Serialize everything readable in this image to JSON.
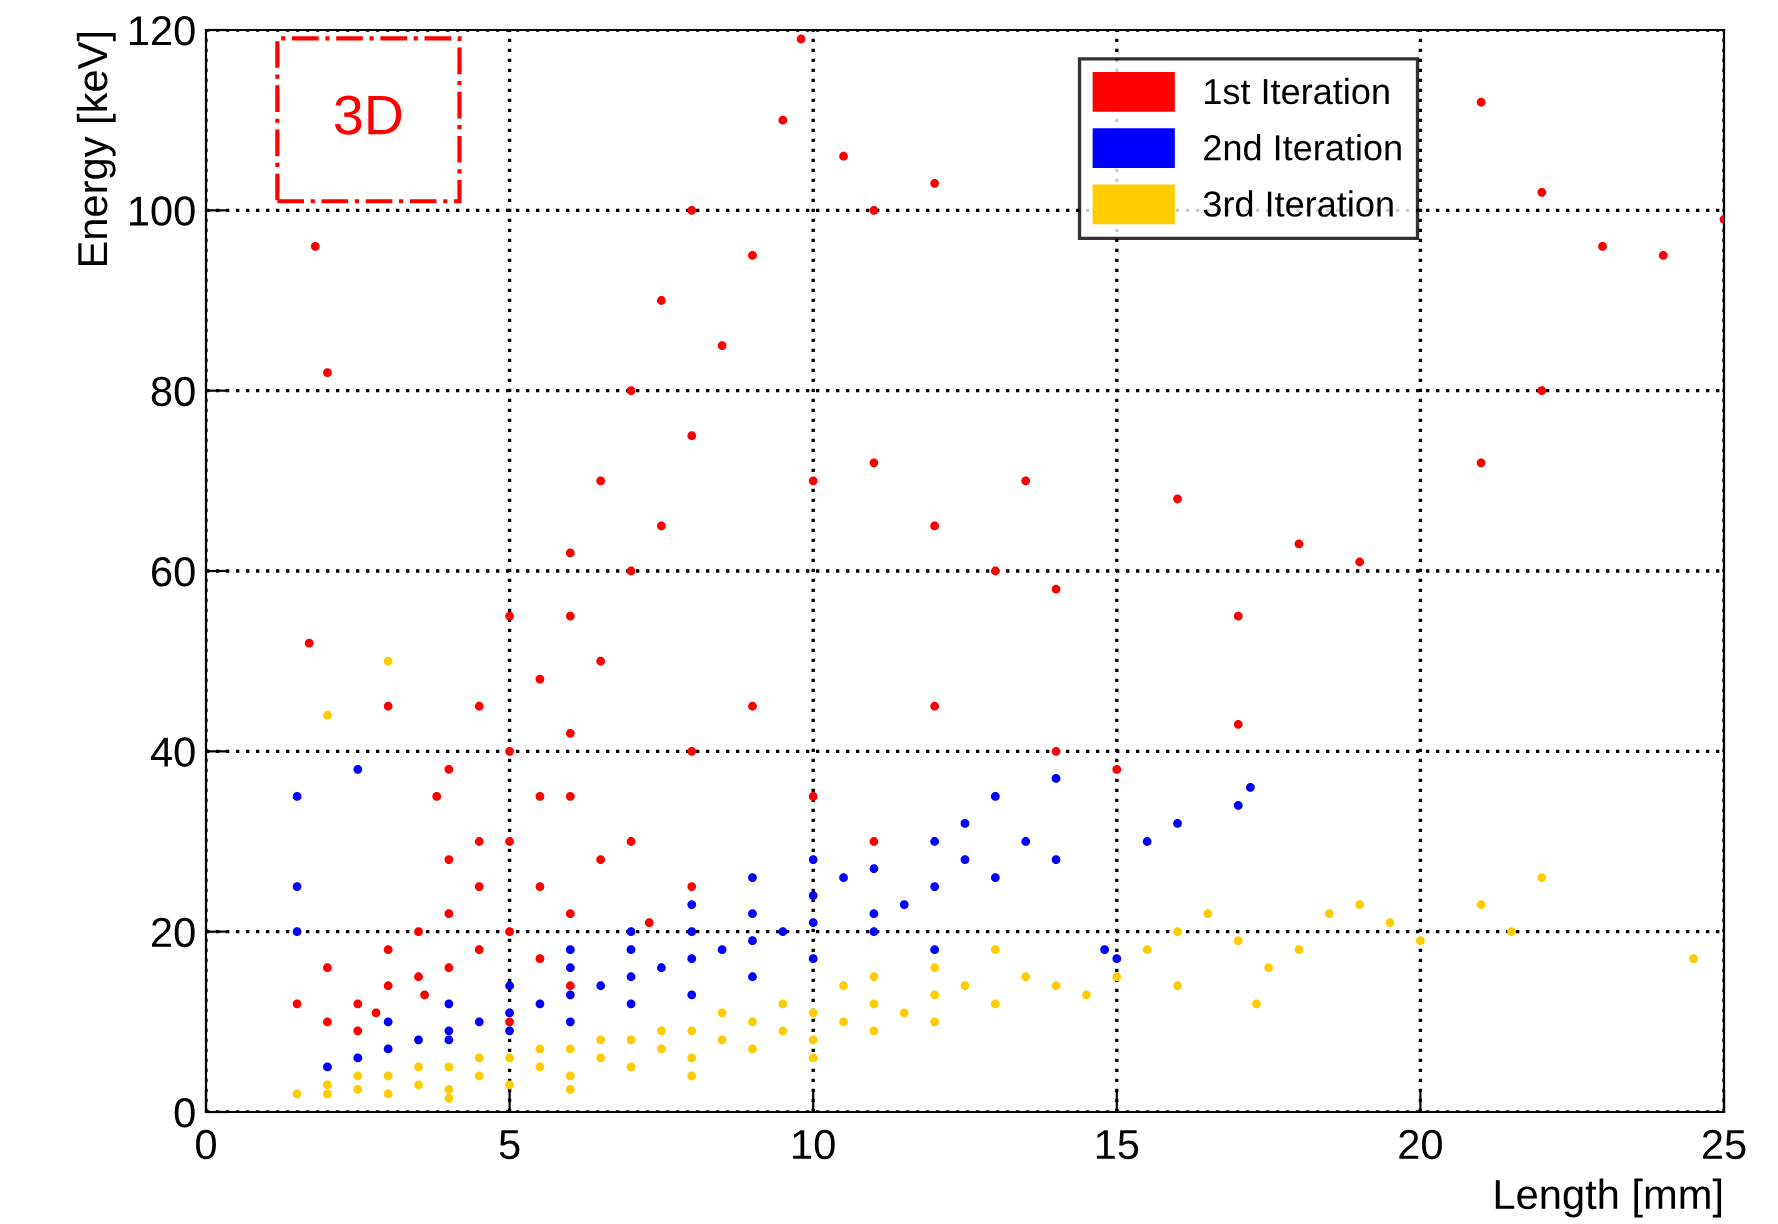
{
  "chart_data": {
    "type": "scatter",
    "xlabel": "Length [mm]",
    "ylabel": "Energy [keV]",
    "xlim": [
      0,
      25
    ],
    "ylim": [
      0,
      120
    ],
    "xticks": [
      0,
      5,
      10,
      15,
      20,
      25
    ],
    "yticks": [
      0,
      20,
      40,
      60,
      80,
      100,
      120
    ],
    "grid": true,
    "legend": "top right",
    "marker": "circle",
    "annotations": [
      "3D"
    ],
    "series": [
      {
        "name": "1st Iteration",
        "color": "#ff0000",
        "x": [
          2,
          2.5,
          3,
          3.5,
          4,
          4.5,
          5,
          5.5,
          6,
          2.8,
          3.6,
          4.5,
          5,
          4,
          5.5,
          5,
          6,
          6.5,
          7,
          6.5,
          7.5,
          7,
          8,
          8.5,
          9,
          9.5,
          7.5,
          6,
          4,
          3.5,
          2,
          1.7,
          1.8,
          2,
          3,
          4,
          4.5,
          5.5,
          6,
          8,
          9.8,
          10.5,
          11,
          12,
          21,
          22,
          23,
          24,
          25,
          10,
          11,
          12,
          13,
          13.5,
          14,
          16,
          17,
          18,
          19,
          21,
          22,
          12,
          14,
          15,
          17,
          9,
          8,
          10,
          11,
          7,
          6.5,
          8,
          3,
          2.5,
          1.5,
          5,
          6,
          7.3,
          5.5,
          4.5,
          3.8,
          5,
          6
        ],
        "values": [
          10,
          12,
          14,
          15,
          16,
          18,
          20,
          17,
          14,
          11,
          13,
          25,
          30,
          28,
          35,
          40,
          42,
          50,
          60,
          70,
          65,
          80,
          75,
          85,
          95,
          110,
          90,
          55,
          22,
          20,
          16,
          52,
          96,
          82,
          45,
          38,
          45,
          48,
          62,
          100,
          119,
          106,
          100,
          103,
          112,
          102,
          96,
          95,
          99,
          70,
          72,
          65,
          60,
          70,
          58,
          68,
          55,
          63,
          61,
          72,
          80,
          45,
          40,
          38,
          43,
          45,
          40,
          35,
          30,
          30,
          28,
          25,
          18,
          9,
          12,
          10,
          22,
          21,
          25,
          30,
          35,
          55,
          35
        ]
      },
      {
        "name": "2nd Iteration",
        "color": "#0000ff",
        "x": [
          2,
          2.5,
          3,
          3.5,
          4,
          4.5,
          5,
          5.5,
          6,
          6.5,
          7,
          7.5,
          8,
          8.5,
          9,
          9.5,
          10,
          3,
          4,
          5,
          6,
          7,
          8,
          9,
          10,
          11,
          11.5,
          12,
          12.5,
          13,
          13.5,
          14,
          12.5,
          12,
          11,
          10.5,
          15,
          16,
          17,
          17.2,
          15.5,
          13,
          14,
          4,
          5,
          6,
          7,
          8,
          9,
          10,
          6,
          7,
          8,
          9,
          10,
          1.5,
          1.5,
          2.5,
          1.5,
          14.8,
          11,
          12
        ],
        "values": [
          5,
          6,
          7,
          8,
          9,
          10,
          11,
          12,
          13,
          14,
          15,
          16,
          17,
          18,
          19,
          20,
          21,
          10,
          12,
          14,
          16,
          18,
          20,
          22,
          24,
          22,
          23,
          25,
          28,
          26,
          30,
          28,
          32,
          30,
          27,
          26,
          17,
          32,
          34,
          36,
          30,
          35,
          37,
          8,
          9,
          10,
          12,
          13,
          15,
          17,
          18,
          20,
          23,
          26,
          28,
          25,
          20,
          38,
          35,
          18,
          20,
          18
        ]
      },
      {
        "name": "3rd Iteration",
        "color": "#ffcc00",
        "x": [
          1.5,
          2,
          2,
          2.5,
          3,
          3,
          3.5,
          4,
          4,
          4.5,
          5,
          5,
          5.5,
          6,
          6,
          6.5,
          7,
          7,
          7.5,
          8,
          8,
          8.5,
          9,
          9,
          9.5,
          10,
          10,
          10.5,
          11,
          11,
          11.5,
          12,
          12,
          12.5,
          13,
          13.5,
          14,
          14.5,
          15,
          15.5,
          16,
          16.5,
          17,
          17.5,
          18,
          18.5,
          19,
          19.5,
          20,
          21,
          21.5,
          22,
          24.5,
          16,
          17.3,
          13,
          12,
          11,
          10.5,
          9.5,
          8.5,
          7.5,
          6.5,
          5.5,
          4.5,
          3.5,
          2.5,
          4,
          6,
          8,
          10,
          2,
          3
        ],
        "values": [
          2,
          2,
          3,
          2.5,
          2,
          4,
          3,
          2.5,
          5,
          4,
          3,
          6,
          5,
          4,
          7,
          6,
          5,
          8,
          7,
          6,
          9,
          8,
          7,
          10,
          9,
          8,
          11,
          10,
          9,
          12,
          11,
          10,
          13,
          14,
          12,
          15,
          14,
          13,
          15,
          18,
          20,
          22,
          19,
          16,
          18,
          22,
          23,
          21,
          19,
          23,
          20,
          26,
          17,
          14,
          12,
          18,
          16,
          15,
          14,
          12,
          11,
          9,
          8,
          7,
          6,
          5,
          4,
          1.5,
          2.5,
          4,
          6,
          44,
          50
        ]
      }
    ]
  }
}
